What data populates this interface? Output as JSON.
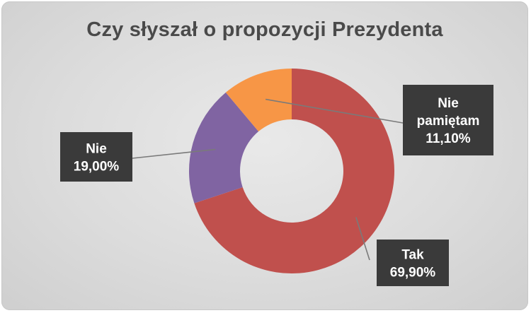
{
  "chart_data": {
    "type": "pie",
    "donut": true,
    "title": "Czy słyszał o propozycji Prezydenta",
    "categories": [
      "Tak",
      "Nie",
      "Nie pamiętam"
    ],
    "values": [
      69.9,
      19.0,
      11.1
    ],
    "value_labels": [
      "69,90%",
      "19,00%",
      "11,10%"
    ],
    "label_lines": [
      [
        "Tak"
      ],
      [
        "Nie"
      ],
      [
        "Nie",
        "pamiętam"
      ]
    ],
    "colors": [
      "#c0504d",
      "#8064a2",
      "#f79646"
    ],
    "legend": "none",
    "start_angle": "12 o'clock, clockwise"
  }
}
